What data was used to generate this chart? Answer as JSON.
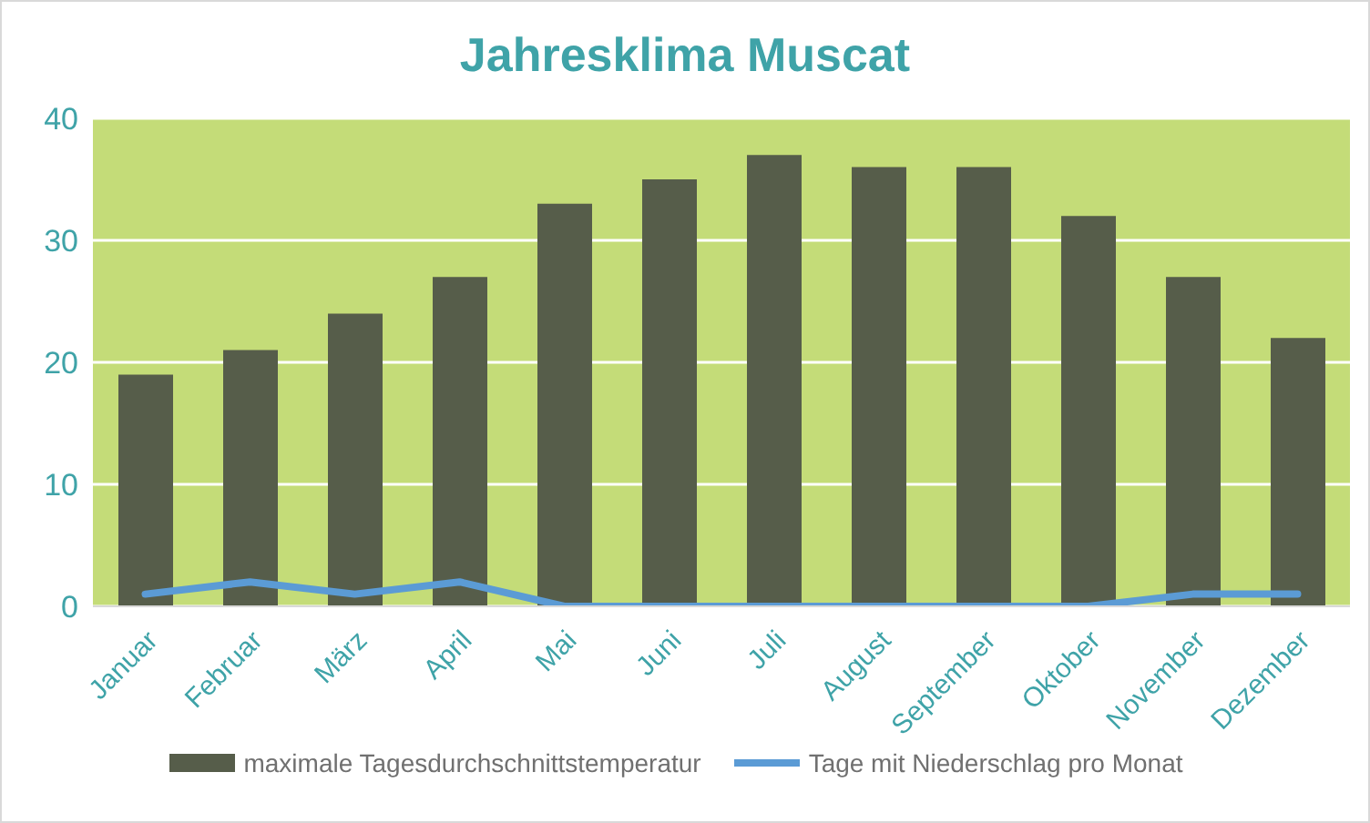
{
  "chart_data": {
    "type": "bar",
    "title": "Jahresklima Muscat",
    "categories": [
      "Januar",
      "Februar",
      "März",
      "April",
      "Mai",
      "Juni",
      "Juli",
      "August",
      "September",
      "Oktober",
      "November",
      "Dezember"
    ],
    "series": [
      {
        "name": "maximale Tagesdurchschnittstemperatur",
        "color": "#565d4a",
        "values": [
          19,
          21,
          24,
          27,
          33,
          35,
          37,
          36,
          36,
          32,
          27,
          22
        ]
      },
      {
        "name": "Tage mit Niederschlag pro Monat",
        "type": "line",
        "color": "#5b9bd5",
        "values": [
          1,
          2,
          1,
          2,
          0,
          0,
          0,
          0,
          0,
          0,
          1,
          1
        ]
      }
    ],
    "ylim": [
      0,
      40
    ],
    "yticks": [
      0,
      10,
      20,
      30,
      40
    ],
    "grid": "y",
    "legend": "bottom",
    "marker": "none"
  }
}
